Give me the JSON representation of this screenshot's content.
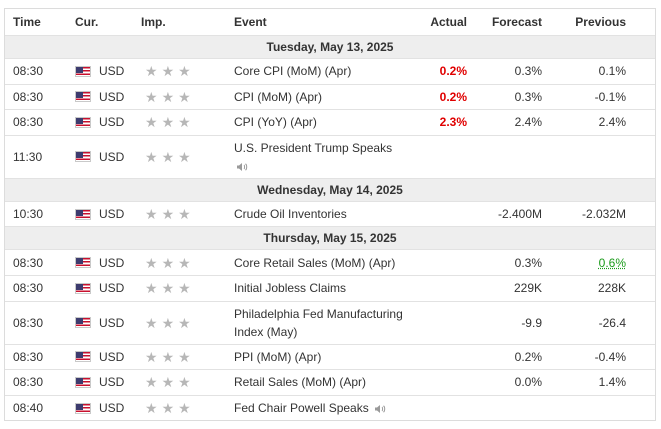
{
  "header": {
    "time": "Time",
    "currency": "Cur.",
    "importance": "Imp.",
    "event": "Event",
    "actual": "Actual",
    "forecast": "Forecast",
    "previous": "Previous"
  },
  "days": [
    {
      "date": "Tuesday, May 13, 2025",
      "events": [
        {
          "time": "08:30",
          "currency": "USD",
          "event": "Core CPI (MoM) (Apr)",
          "actual": "0.2%",
          "actual_color": "red",
          "forecast": "0.3%",
          "previous": "0.1%"
        },
        {
          "time": "08:30",
          "currency": "USD",
          "event": "CPI (MoM) (Apr)",
          "actual": "0.2%",
          "actual_color": "red",
          "forecast": "0.3%",
          "previous": "-0.1%"
        },
        {
          "time": "08:30",
          "currency": "USD",
          "event": "CPI (YoY) (Apr)",
          "actual": "2.3%",
          "actual_color": "red",
          "forecast": "2.4%",
          "previous": "2.4%"
        },
        {
          "time": "11:30",
          "currency": "USD",
          "event": "U.S. President Trump Speaks",
          "actual": "",
          "forecast": "",
          "previous": "",
          "speech": true
        }
      ]
    },
    {
      "date": "Wednesday, May 14, 2025",
      "events": [
        {
          "time": "10:30",
          "currency": "USD",
          "event": "Crude Oil Inventories",
          "actual": "",
          "forecast": "-2.400M",
          "previous": "-2.032M"
        }
      ]
    },
    {
      "date": "Thursday, May 15, 2025",
      "events": [
        {
          "time": "08:30",
          "currency": "USD",
          "event": "Core Retail Sales (MoM) (Apr)",
          "actual": "",
          "forecast": "0.3%",
          "previous": "0.6%",
          "previous_color": "green"
        },
        {
          "time": "08:30",
          "currency": "USD",
          "event": "Initial Jobless Claims",
          "actual": "",
          "forecast": "229K",
          "previous": "228K"
        },
        {
          "time": "08:30",
          "currency": "USD",
          "event": "Philadelphia Fed Manufacturing Index (May)",
          "actual": "",
          "forecast": "-9.9",
          "previous": "-26.4"
        },
        {
          "time": "08:30",
          "currency": "USD",
          "event": "PPI (MoM) (Apr)",
          "actual": "",
          "forecast": "0.2%",
          "previous": "-0.4%"
        },
        {
          "time": "08:30",
          "currency": "USD",
          "event": "Retail Sales (MoM) (Apr)",
          "actual": "",
          "forecast": "0.0%",
          "previous": "1.4%"
        },
        {
          "time": "08:40",
          "currency": "USD",
          "event": "Fed Chair Powell Speaks",
          "actual": "",
          "forecast": "",
          "previous": "",
          "speech_inline": true
        }
      ]
    }
  ],
  "importance_stars": 3,
  "icons": {
    "flag": "us-flag-icon",
    "star": "star-icon",
    "speaker": "speaker-icon"
  },
  "colors": {
    "actual_red": "#e00000",
    "previous_green": "#1a9b1a",
    "date_band": "#eeeeee"
  }
}
